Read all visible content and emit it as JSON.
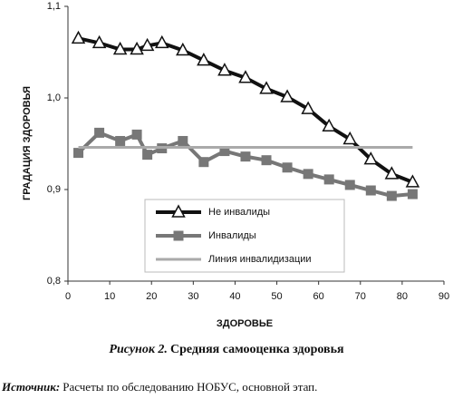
{
  "chart_data": {
    "type": "line",
    "x_label": "ЗДОРОВЬЕ",
    "y_label": "ГРАДАЦИЯ ЗДОРОВЬЯ",
    "xlim": [
      0,
      90
    ],
    "xticks": [
      0,
      10,
      20,
      30,
      40,
      50,
      60,
      70,
      80,
      90
    ],
    "ylim": [
      0.8,
      1.1
    ],
    "yticks": [
      {
        "value": 0.8,
        "label": "0,8"
      },
      {
        "value": 0.9,
        "label": "0,9"
      },
      {
        "value": 1.0,
        "label": "1,0"
      },
      {
        "value": 1.1,
        "label": "1,1"
      }
    ],
    "series": [
      {
        "name": "Не инвалиды",
        "color": "#111111",
        "marker": "triangle",
        "x": [
          2.5,
          7.5,
          12.5,
          16.5,
          19,
          22.5,
          27.5,
          32.5,
          37.5,
          42.5,
          47.5,
          52.5,
          57.5,
          62.5,
          67.5,
          72.5,
          77.5,
          82.5
        ],
        "values": [
          1.065,
          1.06,
          1.053,
          1.053,
          1.057,
          1.06,
          1.052,
          1.041,
          1.03,
          1.022,
          1.01,
          1.001,
          0.988,
          0.969,
          0.955,
          0.933,
          0.917,
          0.908
        ]
      },
      {
        "name": "Инвалиды",
        "color": "#777777",
        "marker": "square",
        "x": [
          2.5,
          7.5,
          12.5,
          16.5,
          19,
          22.5,
          27.5,
          32.5,
          37.5,
          42.5,
          47.5,
          52.5,
          57.5,
          62.5,
          67.5,
          72.5,
          77.5,
          82.5
        ],
        "values": [
          0.94,
          0.962,
          0.953,
          0.96,
          0.938,
          0.945,
          0.953,
          0.93,
          0.942,
          0.936,
          0.932,
          0.924,
          0.917,
          0.911,
          0.905,
          0.899,
          0.893,
          0.895
        ]
      },
      {
        "name": "Линия инвалидизации",
        "color": "#aaaaaa",
        "marker": "none",
        "x": [
          2.5,
          82.5
        ],
        "values": [
          0.946,
          0.946
        ]
      }
    ]
  },
  "caption": {
    "label": "Рисунок 2.",
    "text": "Средняя самооценка здоровья"
  },
  "source": {
    "label": "Источник:",
    "text": "Расчеты по обследованию НОБУС, основной этап."
  }
}
